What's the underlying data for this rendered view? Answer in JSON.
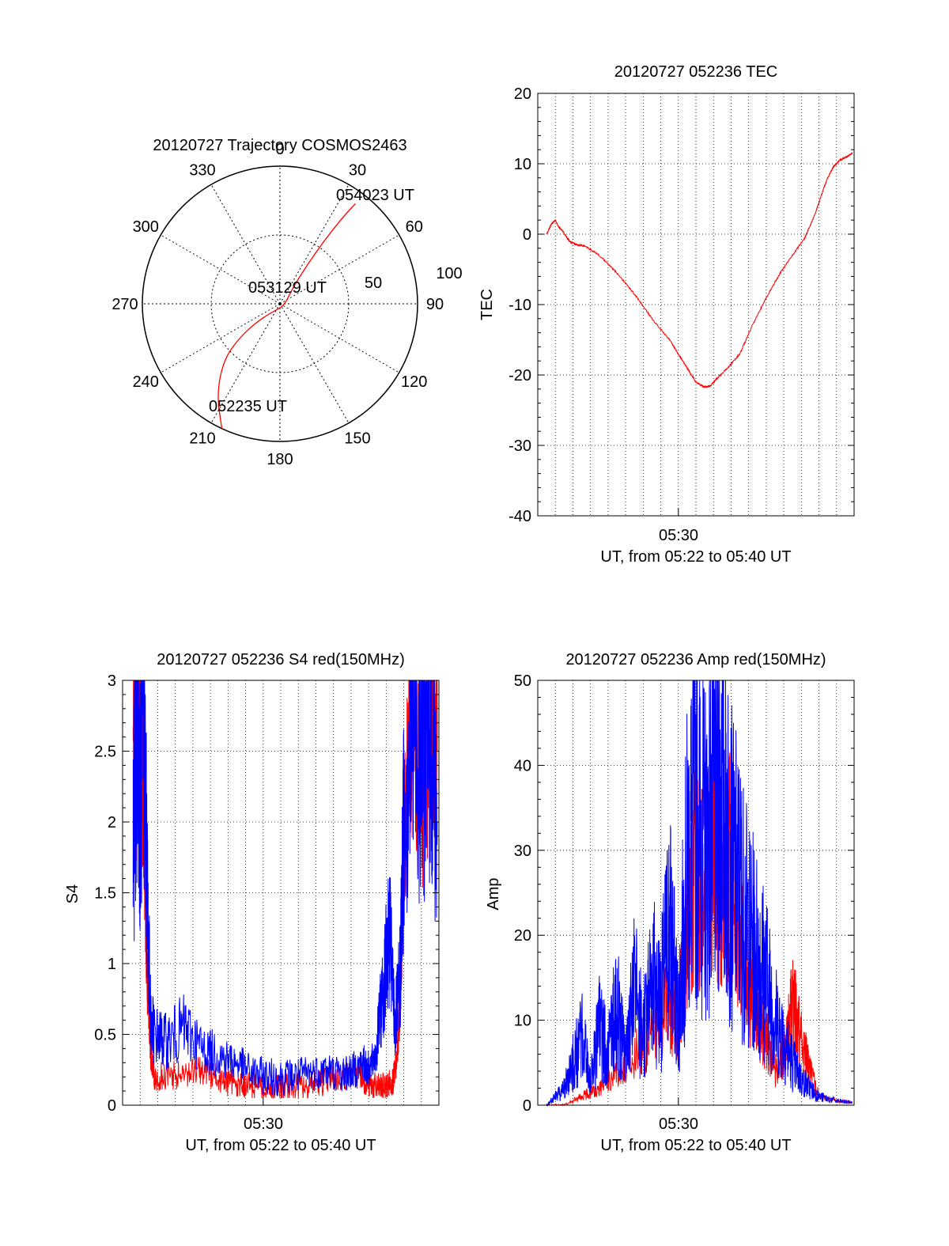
{
  "chart_data": [
    {
      "type": "polar",
      "title": "20120727 Trajectory COSMOS2463",
      "azimuth_labels": [
        "0",
        "30",
        "60",
        "90",
        "120",
        "150",
        "180",
        "210",
        "240",
        "270",
        "300",
        "330"
      ],
      "radial_labels": [
        "50",
        "100"
      ],
      "grid": true,
      "series": [
        {
          "color": "#ff0000",
          "points": [
            {
              "az": 205,
              "zen": 90
            },
            {
              "az": 215,
              "zen": 72
            },
            {
              "az": 225,
              "zen": 52
            },
            {
              "az": 230,
              "zen": 35
            },
            {
              "az": 232,
              "zen": 20
            },
            {
              "az": 225,
              "zen": 8
            },
            {
              "az": 120,
              "zen": 3
            },
            {
              "az": 40,
              "zen": 12
            },
            {
              "az": 35,
              "zen": 30
            },
            {
              "az": 35,
              "zen": 50
            },
            {
              "az": 36,
              "zen": 70
            },
            {
              "az": 37,
              "zen": 82
            }
          ]
        }
      ],
      "annotations": [
        "054023 UT",
        "053129 UT",
        "052235 UT"
      ]
    },
    {
      "type": "line",
      "title": "20120727 052236 TEC",
      "xlabel": "UT, from 05:22 to 05:40 UT",
      "ylabel": "TEC",
      "xlim": [
        0,
        18
      ],
      "ylim": [
        -40,
        20
      ],
      "xticks": [
        {
          "value": 8,
          "label": "05:30"
        }
      ],
      "yticks": [
        "-40",
        "-30",
        "-20",
        "-10",
        "0",
        "10",
        "20"
      ],
      "grid": true,
      "series": [
        {
          "color": "#ff0000",
          "x": [
            0.5,
            0.8,
            1.0,
            1.2,
            1.4,
            1.8,
            2.2,
            2.7,
            3.5,
            4.5,
            5.5,
            6.5,
            7.5,
            8.0,
            8.5,
            9.0,
            9.5,
            9.8,
            10.2,
            10.8,
            11.5,
            12.2,
            13.0,
            13.8,
            14.5,
            15.2,
            15.8,
            16.2,
            16.5,
            16.8,
            17.2,
            17.6,
            17.9
          ],
          "y": [
            0,
            1.5,
            2,
            1,
            0.5,
            -1,
            -1.5,
            -1.7,
            -3,
            -5.5,
            -8.5,
            -12,
            -15,
            -17,
            -19,
            -21,
            -21.7,
            -21.6,
            -20.5,
            -19,
            -17,
            -13,
            -9,
            -5.5,
            -3,
            -0.5,
            3,
            6,
            8,
            9.5,
            10.5,
            11,
            11.5
          ]
        }
      ]
    },
    {
      "type": "line",
      "title": "20120727 052236 S4 red(150MHz)",
      "xlabel": "UT, from 05:22 to 05:40 UT",
      "ylabel": "S4",
      "xlim": [
        0,
        18
      ],
      "ylim": [
        0,
        3
      ],
      "xticks": [
        {
          "value": 8,
          "label": "05:30"
        }
      ],
      "yticks": [
        "0",
        "0.5",
        "1",
        "1.5",
        "2",
        "2.5",
        "3"
      ],
      "grid": true,
      "series": [
        {
          "color": "#ff0000",
          "x": [
            0.6,
            0.8,
            1.0,
            1.2,
            1.4,
            1.6,
            1.8,
            2.5,
            3.5,
            4.5,
            5.5,
            6.5,
            7.5,
            8.5,
            9.5,
            10.5,
            11.5,
            12.5,
            13.5,
            14.0,
            14.5,
            15.0,
            15.4,
            15.6,
            15.8,
            16.0,
            16.5,
            17.0,
            17.5,
            17.9
          ],
          "y": [
            3,
            2.6,
            2.9,
            2.2,
            1.0,
            0.35,
            0.2,
            0.2,
            0.22,
            0.25,
            0.18,
            0.14,
            0.13,
            0.12,
            0.13,
            0.15,
            0.17,
            0.2,
            0.22,
            0.15,
            0.12,
            0.13,
            0.18,
            0.3,
            0.8,
            2.0,
            2.8,
            2.3,
            2.7,
            2.5
          ]
        },
        {
          "color": "#0000ff",
          "x": [
            0.6,
            0.8,
            1.0,
            1.2,
            1.4,
            1.6,
            1.8,
            2.5,
            3.5,
            4.5,
            5.5,
            6.5,
            7.5,
            8.5,
            9.5,
            10.5,
            11.5,
            12.5,
            13.2,
            13.7,
            14.0,
            14.4,
            14.8,
            15.2,
            15.5,
            15.8,
            16.0,
            16.5,
            17.0,
            17.5,
            17.9
          ],
          "y": [
            1.8,
            2.8,
            2.2,
            2.8,
            1.5,
            0.6,
            0.5,
            0.45,
            0.55,
            0.4,
            0.35,
            0.3,
            0.22,
            0.2,
            0.2,
            0.22,
            0.25,
            0.22,
            0.25,
            0.3,
            0.25,
            0.35,
            0.8,
            1.2,
            0.55,
            0.9,
            2.0,
            2.8,
            2.5,
            2.7,
            2.0
          ]
        }
      ]
    },
    {
      "type": "line",
      "title": "20120727 052236 Amp red(150MHz)",
      "xlabel": "UT, from 05:22 to 05:40 UT",
      "ylabel": "Amp",
      "xlim": [
        0,
        18
      ],
      "ylim": [
        0,
        50
      ],
      "xticks": [
        {
          "value": 8,
          "label": "05:30"
        }
      ],
      "yticks": [
        "0",
        "10",
        "20",
        "30",
        "40",
        "50"
      ],
      "grid": true,
      "series": [
        {
          "color": "#ff0000",
          "x": [
            0.5,
            1.5,
            2.5,
            3.5,
            4.5,
            5.5,
            6.5,
            7.5,
            8.0,
            8.5,
            9.0,
            9.5,
            10.0,
            10.5,
            11.0,
            11.5,
            12.0,
            12.5,
            13.0,
            13.5,
            14.0,
            14.5,
            15.0,
            15.5,
            16.0,
            17.0,
            17.9
          ],
          "y": [
            0,
            0,
            1,
            2,
            4,
            6,
            8,
            12,
            10,
            22,
            28,
            24,
            32,
            22,
            30,
            20,
            14,
            10,
            8,
            4,
            6,
            12,
            8,
            4,
            1,
            0.5,
            0.3
          ]
        },
        {
          "color": "#0000ff",
          "x": [
            0.5,
            1.0,
            1.5,
            2.0,
            2.5,
            3.0,
            3.5,
            4.0,
            4.5,
            5.0,
            5.5,
            6.0,
            6.5,
            7.0,
            7.5,
            8.0,
            8.5,
            9.0,
            9.5,
            10.0,
            10.5,
            11.0,
            11.5,
            12.0,
            12.5,
            13.0,
            13.5,
            14.0,
            14.5,
            15.0,
            15.5,
            16.0,
            17.0,
            17.9
          ],
          "y": [
            0,
            1,
            2,
            5,
            8,
            3,
            9,
            6,
            12,
            5,
            14,
            8,
            16,
            12,
            22,
            10,
            28,
            36,
            30,
            34,
            40,
            28,
            25,
            20,
            18,
            15,
            10,
            8,
            5,
            3,
            2,
            1,
            0.5,
            0.3
          ]
        }
      ]
    }
  ]
}
